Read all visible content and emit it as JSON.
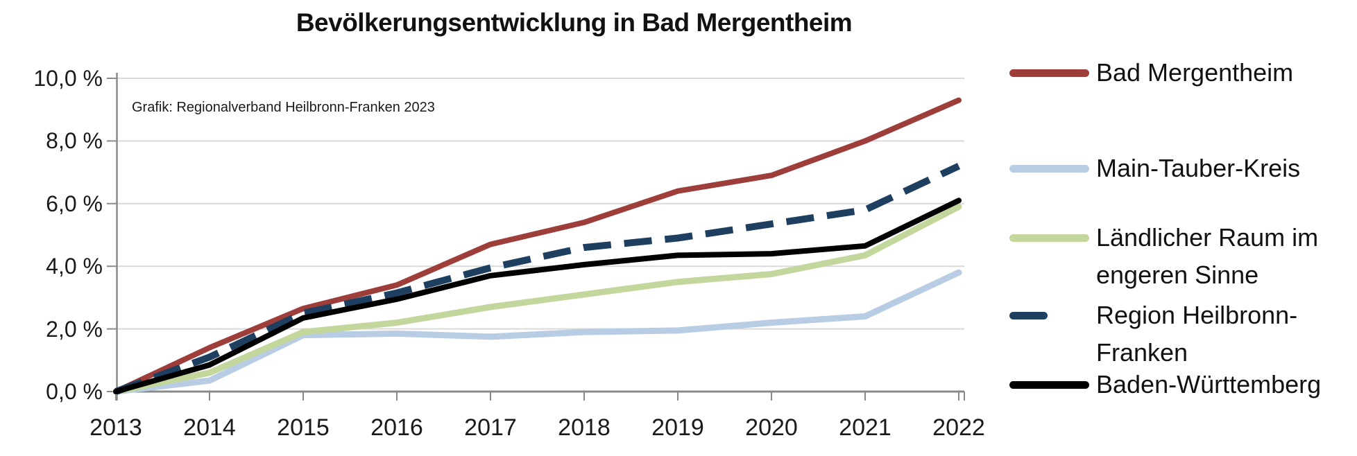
{
  "page": {
    "title": "Bevölkerungsentwicklung in Bad Mergentheim",
    "annotation": "Grafik: Regionalverband Heilbronn-Franken 2023"
  },
  "chart_data": {
    "type": "line",
    "title": "Bevölkerungsentwicklung in Bad Mergentheim",
    "annotation": "Grafik: Regionalverband Heilbronn-Franken 2023",
    "x_axis": {
      "labels": [
        "2013",
        "2014",
        "2015",
        "2016",
        "2017",
        "2018",
        "2019",
        "2020",
        "2021",
        "2022"
      ]
    },
    "y_axis": {
      "unit": "%",
      "ticks": [
        {
          "label": "10,0 %",
          "value": 10
        },
        {
          "label": "8,0 %",
          "value": 8
        },
        {
          "label": "6,0 %",
          "value": 6
        },
        {
          "label": "4,0 %",
          "value": 4
        },
        {
          "label": "2,0 %",
          "value": 2
        },
        {
          "label": "0,0 %",
          "value": 0
        }
      ],
      "ylim": [
        0,
        10
      ]
    },
    "grid": true,
    "legend_position": "right",
    "series": [
      {
        "name": "Bad Mergentheim",
        "color": "#9E3E3B",
        "style": "solid",
        "values": [
          0,
          1.4,
          2.65,
          3.4,
          4.7,
          5.4,
          6.4,
          6.9,
          8.0,
          9.3
        ]
      },
      {
        "name": "Main-Tauber-Kreis",
        "color": "#B8CCE4",
        "style": "solid",
        "values": [
          0,
          0.35,
          1.8,
          1.85,
          1.75,
          1.9,
          1.95,
          2.2,
          2.4,
          3.8
        ]
      },
      {
        "name": "Ländlicher Raum im engeren Sinne",
        "color": "#C3D69B",
        "style": "solid",
        "values": [
          0,
          0.6,
          1.9,
          2.2,
          2.7,
          3.1,
          3.5,
          3.75,
          4.35,
          5.9
        ]
      },
      {
        "name": "Region Heilbronn-Franken",
        "color": "#1E3F60",
        "style": "dashed",
        "values": [
          0,
          1.1,
          2.5,
          3.15,
          3.95,
          4.6,
          4.9,
          5.35,
          5.8,
          7.2
        ]
      },
      {
        "name": "Baden-Württemberg",
        "color": "#000000",
        "style": "solid",
        "values": [
          0,
          0.85,
          2.35,
          2.95,
          3.7,
          4.05,
          4.35,
          4.4,
          4.65,
          6.1
        ]
      }
    ],
    "colors": {
      "gridline": "#D9D9D9",
      "axis": "#8A8A8A",
      "text": "#1A1A1A"
    }
  }
}
